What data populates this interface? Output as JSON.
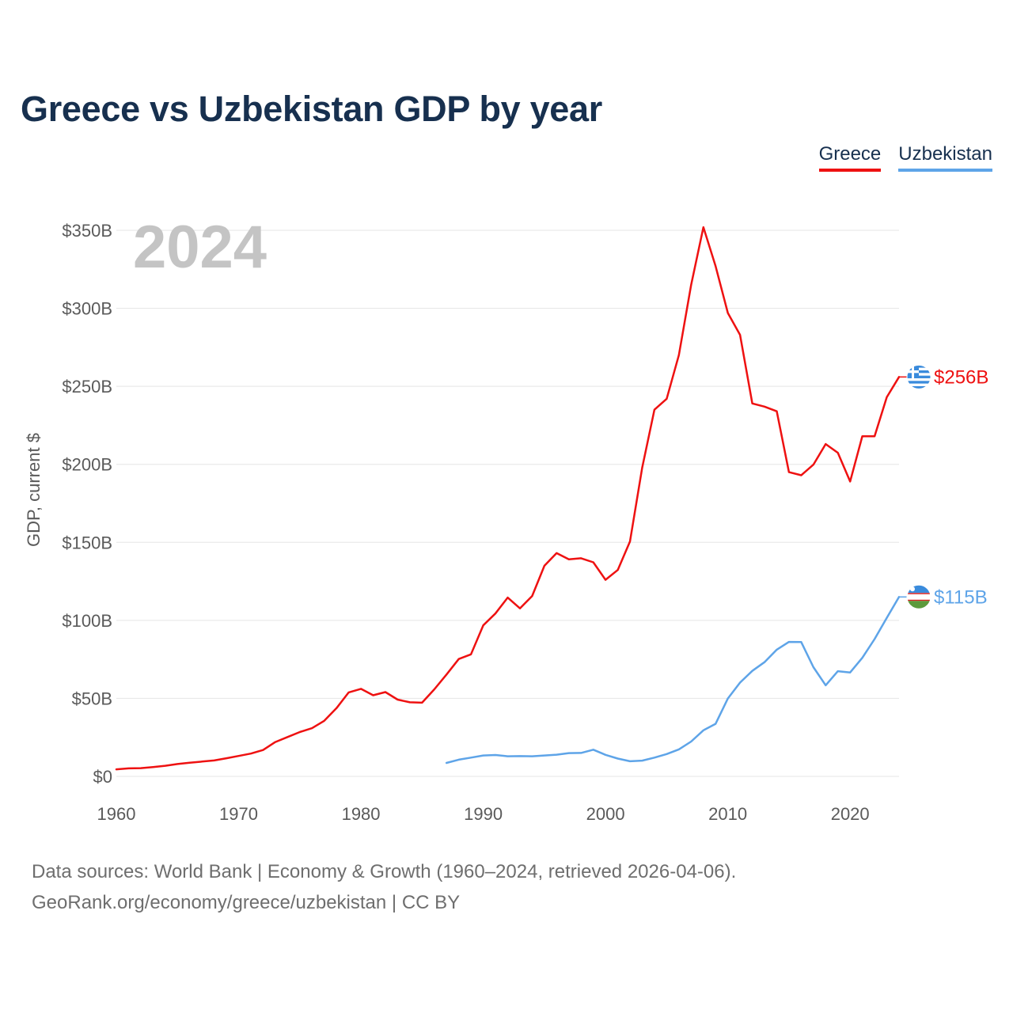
{
  "title": "Greece vs Uzbekistan GDP by year",
  "legend": {
    "greece": "Greece",
    "uzbekistan": "Uzbekistan"
  },
  "colors": {
    "title": "#17304f",
    "greece": "#ee1111",
    "uzbekistan": "#5ea4e8",
    "grid": "#e5e5e5",
    "tick": "#5a5a5a",
    "watermark": "#c4c4c4"
  },
  "source": {
    "line1": "Data sources: World Bank | Economy & Growth (1960–2024, retrieved 2026-04-06).",
    "line2": "GeoRank.org/economy/greece/uzbekistan | CC BY"
  },
  "chart_data": {
    "type": "line",
    "title": "Greece vs Uzbekistan GDP by year",
    "xlabel": "",
    "ylabel": "GDP, current $",
    "year_label": "2024",
    "xlim": [
      1960,
      2024
    ],
    "ylim": [
      0,
      350
    ],
    "y_unit": "billions of current US$",
    "grid": true,
    "legend_position": "top-right",
    "y_ticks": [
      {
        "value": 0,
        "label": "$0"
      },
      {
        "value": 50,
        "label": "$50B"
      },
      {
        "value": 100,
        "label": "$100B"
      },
      {
        "value": 150,
        "label": "$150B"
      },
      {
        "value": 200,
        "label": "$200B"
      },
      {
        "value": 250,
        "label": "$250B"
      },
      {
        "value": 300,
        "label": "$300B"
      },
      {
        "value": 350,
        "label": "$350B"
      }
    ],
    "x_ticks": [
      {
        "value": 1960,
        "label": "1960"
      },
      {
        "value": 1970,
        "label": "1970"
      },
      {
        "value": 1980,
        "label": "1980"
      },
      {
        "value": 1990,
        "label": "1990"
      },
      {
        "value": 2000,
        "label": "2000"
      },
      {
        "value": 2010,
        "label": "2010"
      },
      {
        "value": 2020,
        "label": "2020"
      }
    ],
    "series": [
      {
        "name": "Greece",
        "color": "#ee1111",
        "flag": "greece-flag-icon",
        "end_label": "$256B",
        "x": [
          1960,
          1961,
          1962,
          1963,
          1964,
          1965,
          1966,
          1967,
          1968,
          1969,
          1970,
          1971,
          1972,
          1973,
          1974,
          1975,
          1976,
          1977,
          1978,
          1979,
          1980,
          1981,
          1982,
          1983,
          1984,
          1985,
          1986,
          1987,
          1988,
          1989,
          1990,
          1991,
          1992,
          1993,
          1994,
          1995,
          1996,
          1997,
          1998,
          1999,
          2000,
          2001,
          2002,
          2003,
          2004,
          2005,
          2006,
          2007,
          2008,
          2009,
          2010,
          2011,
          2012,
          2013,
          2014,
          2015,
          2016,
          2017,
          2018,
          2019,
          2020,
          2021,
          2022,
          2023,
          2024
        ],
        "values": [
          4.5,
          5.1,
          5.3,
          6.0,
          6.8,
          7.9,
          8.8,
          9.5,
          10.2,
          11.6,
          13.1,
          14.6,
          16.9,
          22.0,
          25.2,
          28.4,
          30.9,
          35.6,
          43.7,
          53.8,
          56.1,
          52.0,
          54.0,
          49.2,
          47.5,
          47.2,
          55.8,
          65.3,
          75.2,
          78.2,
          96.8,
          104.4,
          114.6,
          107.7,
          115.6,
          135.0,
          143.1,
          139.1,
          139.8,
          137.2,
          126.0,
          132.3,
          150.5,
          198.0,
          235.0,
          242.0,
          270.0,
          315.0,
          352.0,
          327.0,
          297.0,
          283.0,
          239.0,
          237.0,
          234.0,
          195.0,
          193.0,
          199.8,
          213.0,
          207.4,
          189.0,
          218.0,
          218.0,
          243.0,
          256.0
        ]
      },
      {
        "name": "Uzbekistan",
        "color": "#5ea4e8",
        "flag": "uzbekistan-flag-icon",
        "end_label": "$115B",
        "x": [
          1987,
          1988,
          1989,
          1990,
          1991,
          1992,
          1993,
          1994,
          1995,
          1996,
          1997,
          1998,
          1999,
          2000,
          2001,
          2002,
          2003,
          2004,
          2005,
          2006,
          2007,
          2008,
          2009,
          2010,
          2011,
          2012,
          2013,
          2014,
          2015,
          2016,
          2017,
          2018,
          2019,
          2020,
          2021,
          2022,
          2023,
          2024
        ],
        "values": [
          8.6,
          10.7,
          12.0,
          13.4,
          13.7,
          12.9,
          13.0,
          12.9,
          13.4,
          13.9,
          14.9,
          15.0,
          17.1,
          13.8,
          11.4,
          9.7,
          10.1,
          12.0,
          14.3,
          17.3,
          22.3,
          29.5,
          33.7,
          49.9,
          60.1,
          67.6,
          73.2,
          81.2,
          86.2,
          86.1,
          70.0,
          58.4,
          67.4,
          66.6,
          76.0,
          88.0,
          101.6,
          115.0
        ]
      }
    ]
  }
}
